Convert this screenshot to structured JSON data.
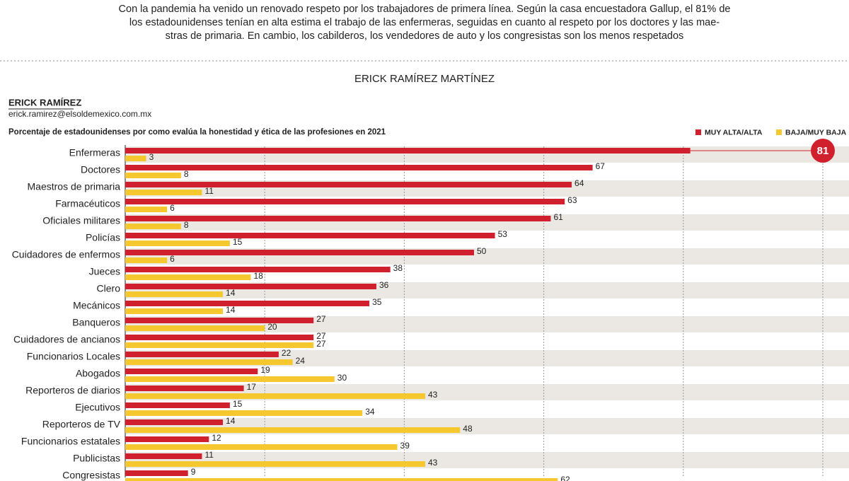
{
  "intro": [
    "Con la pandemia ha venido un renovado respeto por los trabajadores de primera línea. Según la casa encuestadora Gallup, el 81% de",
    "los estadounidenses tenían en alta estima el trabajo de las enfermeras, seguidas en cuanto al respeto por los doctores y las mae-",
    "stras de primaria. En cambio, los cabilderos, los vendedores de auto y los congresistas son los menos respetados"
  ],
  "byline": "ERICK RAMÍREZ MARTÍNEZ",
  "author": "ERICK RAMÍREZ",
  "email": "erick.ramirez@elsoldemexico.com.mx",
  "chart_data": {
    "type": "hbar",
    "title": "Porcentaje de estadounidenses por como evalúa la honestidad y ética de las profesiones en 2021",
    "categories": [
      "Enfermeras",
      "Doctores",
      "Maestros de primaria",
      "Farmacéuticos",
      "Oficiales militares",
      "Policías",
      "Cuidadores de enfermos",
      "Jueces",
      "Clero",
      "Mecánicos",
      "Banqueros",
      "Cuidadores de ancianos",
      "Funcionarios Locales",
      "Abogados",
      "Reporteros de diarios",
      "Ejecutivos",
      "Reporteros de TV",
      "Funcionarios estatales",
      "Publicistas",
      "Congresistas"
    ],
    "series": [
      {
        "name": "MUY ALTA/ALTA",
        "color": "#d0202e",
        "values": [
          81,
          67,
          64,
          63,
          61,
          53,
          50,
          38,
          36,
          35,
          27,
          27,
          22,
          19,
          17,
          15,
          14,
          12,
          11,
          9
        ]
      },
      {
        "name": "BAJA/MUY BAJA",
        "color": "#f5c830",
        "values": [
          3,
          8,
          11,
          6,
          8,
          15,
          6,
          18,
          14,
          14,
          20,
          27,
          24,
          30,
          43,
          34,
          48,
          39,
          43,
          62
        ]
      }
    ],
    "xlim": [
      0,
      100
    ],
    "xticks": [
      0,
      20,
      40,
      60,
      80,
      100
    ],
    "grid": true,
    "legend": "top-right"
  }
}
